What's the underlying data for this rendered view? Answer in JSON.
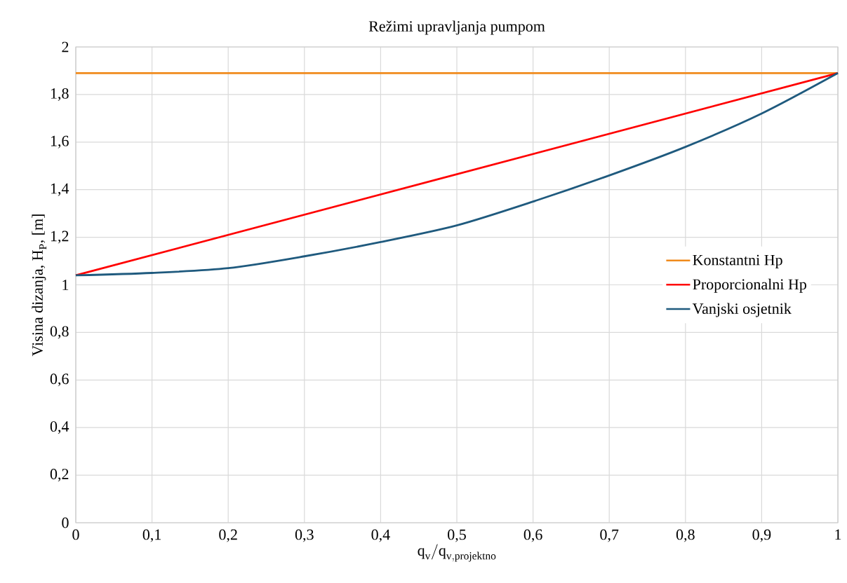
{
  "chart_data": {
    "type": "line",
    "title": "Režimi upravljanja pumpom",
    "xlabel": "\\mathrm{q_{v}/q_{v,projektno}}",
    "ylabel": "Visina dizanja, H$_{P}$, [m]",
    "xlim": [
      0,
      1
    ],
    "ylim": [
      0,
      2
    ],
    "xticks": [
      0,
      {
        "value": 0.1,
        "label": "0,1"
      },
      {
        "value": 0.2,
        "label": "0,2"
      },
      {
        "value": 0.3,
        "label": "0,3"
      },
      {
        "value": 0.4,
        "label": "0,4"
      },
      {
        "value": 0.5,
        "label": "0,5"
      },
      {
        "value": 0.6,
        "label": "0,6"
      },
      {
        "value": 0.7,
        "label": "0,7"
      },
      {
        "value": 0.8,
        "label": "0,8"
      },
      {
        "value": 0.9,
        "label": "0,9"
      },
      1
    ],
    "yticks": [
      0,
      {
        "value": 0.2,
        "label": "0,2"
      },
      {
        "value": 0.4,
        "label": "0,4"
      },
      {
        "value": 0.6,
        "label": "0,6"
      },
      {
        "value": 0.8,
        "label": "0,8"
      },
      1,
      {
        "value": 1.2,
        "label": "1,2"
      },
      {
        "value": 1.4,
        "label": "1,4"
      },
      {
        "value": 1.6,
        "label": "1,6"
      },
      {
        "value": 1.8,
        "label": "1,8"
      },
      2
    ],
    "grid": true,
    "legend": "right",
    "series": [
      {
        "name": "Konstantni Hp",
        "color": "#f08a1c",
        "x": [
          0,
          1
        ],
        "values": [
          1.89,
          1.89
        ]
      },
      {
        "name": "Proporcionalni Hp",
        "color": "#ff0000",
        "x": [
          0,
          1
        ],
        "values": [
          1.04,
          1.89
        ]
      },
      {
        "name": "Vanjski osjetnik",
        "color": "#1f5a7e",
        "x": [
          0,
          0.1,
          0.2,
          0.3,
          0.4,
          0.5,
          0.6,
          0.7,
          0.8,
          0.9,
          1
        ],
        "values": [
          1.04,
          1.05,
          1.07,
          1.12,
          1.18,
          1.25,
          1.35,
          1.46,
          1.58,
          1.72,
          1.89
        ]
      }
    ]
  }
}
